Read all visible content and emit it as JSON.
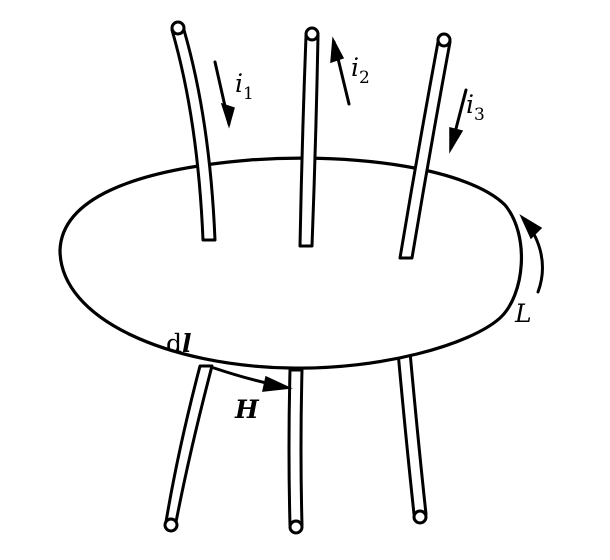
{
  "labels": {
    "i1": {
      "symbol": "i",
      "subscript": "1"
    },
    "i2": {
      "symbol": "i",
      "subscript": "2"
    },
    "i3": {
      "symbol": "i",
      "subscript": "3"
    },
    "L": "L",
    "dl": {
      "prefix": "d",
      "vector": "l"
    },
    "H": "H"
  },
  "colors": {
    "ink": "#000000",
    "paper": "#ffffff"
  }
}
